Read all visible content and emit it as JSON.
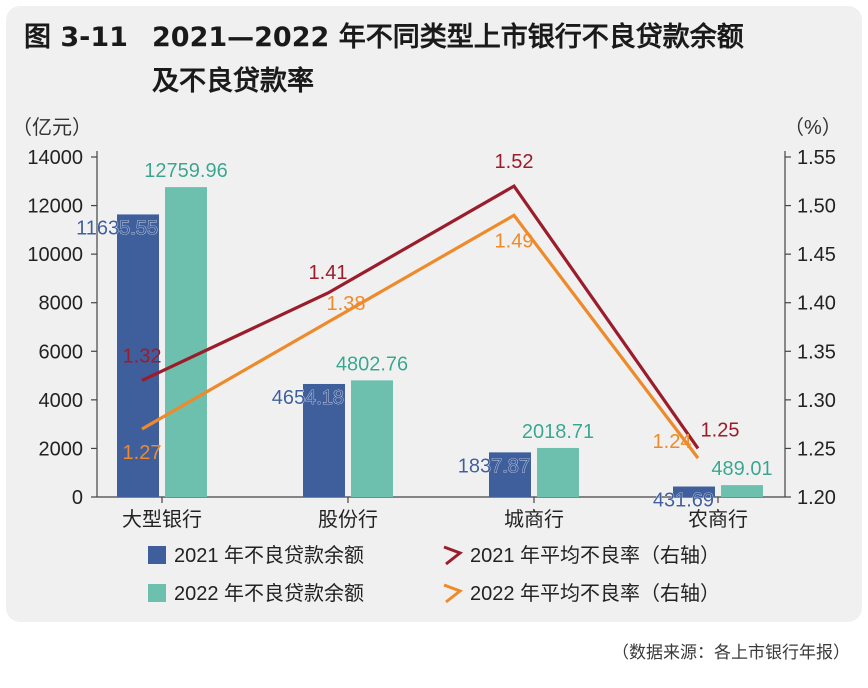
{
  "figure": {
    "number": "图 3-11",
    "title_line1": "2021—2022 年不同类型上市银行不良贷款余额",
    "title_line2": "及不良贷款率",
    "source": "（数据来源：各上市银行年报）"
  },
  "chart_data": {
    "type": "bar",
    "categories": [
      "大型银行",
      "股份行",
      "城商行",
      "农商行"
    ],
    "left_axis": {
      "unit": "（亿元）",
      "ylim": [
        0,
        14000
      ],
      "ticks": [
        "0",
        "2000",
        "4000",
        "6000",
        "8000",
        "10000",
        "12000",
        "14000"
      ]
    },
    "right_axis": {
      "unit": "（%）",
      "ylim": [
        1.2,
        1.55
      ],
      "ticks": [
        "1.20",
        "1.25",
        "1.30",
        "1.35",
        "1.40",
        "1.45",
        "1.50",
        "1.55"
      ]
    },
    "bar_series": [
      {
        "name": "2021 年不良贷款余额",
        "color": "#3f5f9c",
        "values": [
          11635.55,
          4654.18,
          1837.87,
          431.69
        ],
        "labels": [
          "11635.55",
          "4654.18",
          "1837.87",
          "431.69"
        ]
      },
      {
        "name": "2022 年不良贷款余额",
        "color": "#6cc0ad",
        "values": [
          12759.96,
          4802.76,
          2018.71,
          489.01
        ],
        "labels": [
          "12759.96",
          "4802.76",
          "2018.71",
          "489.01"
        ]
      }
    ],
    "line_series": [
      {
        "name": "2021 年平均不良率（右轴）",
        "color": "#9b1c2b",
        "values": [
          1.32,
          1.41,
          1.52,
          1.25
        ],
        "labels": [
          "1.32",
          "1.41",
          "1.52",
          "1.25"
        ]
      },
      {
        "name": "2022 年平均不良率（右轴）",
        "color": "#ee8a2a",
        "values": [
          1.27,
          1.38,
          1.49,
          1.24
        ],
        "labels": [
          "1.27",
          "1.38",
          "1.49",
          "1.24"
        ]
      }
    ],
    "legend_position": "bottom",
    "grid": false
  }
}
